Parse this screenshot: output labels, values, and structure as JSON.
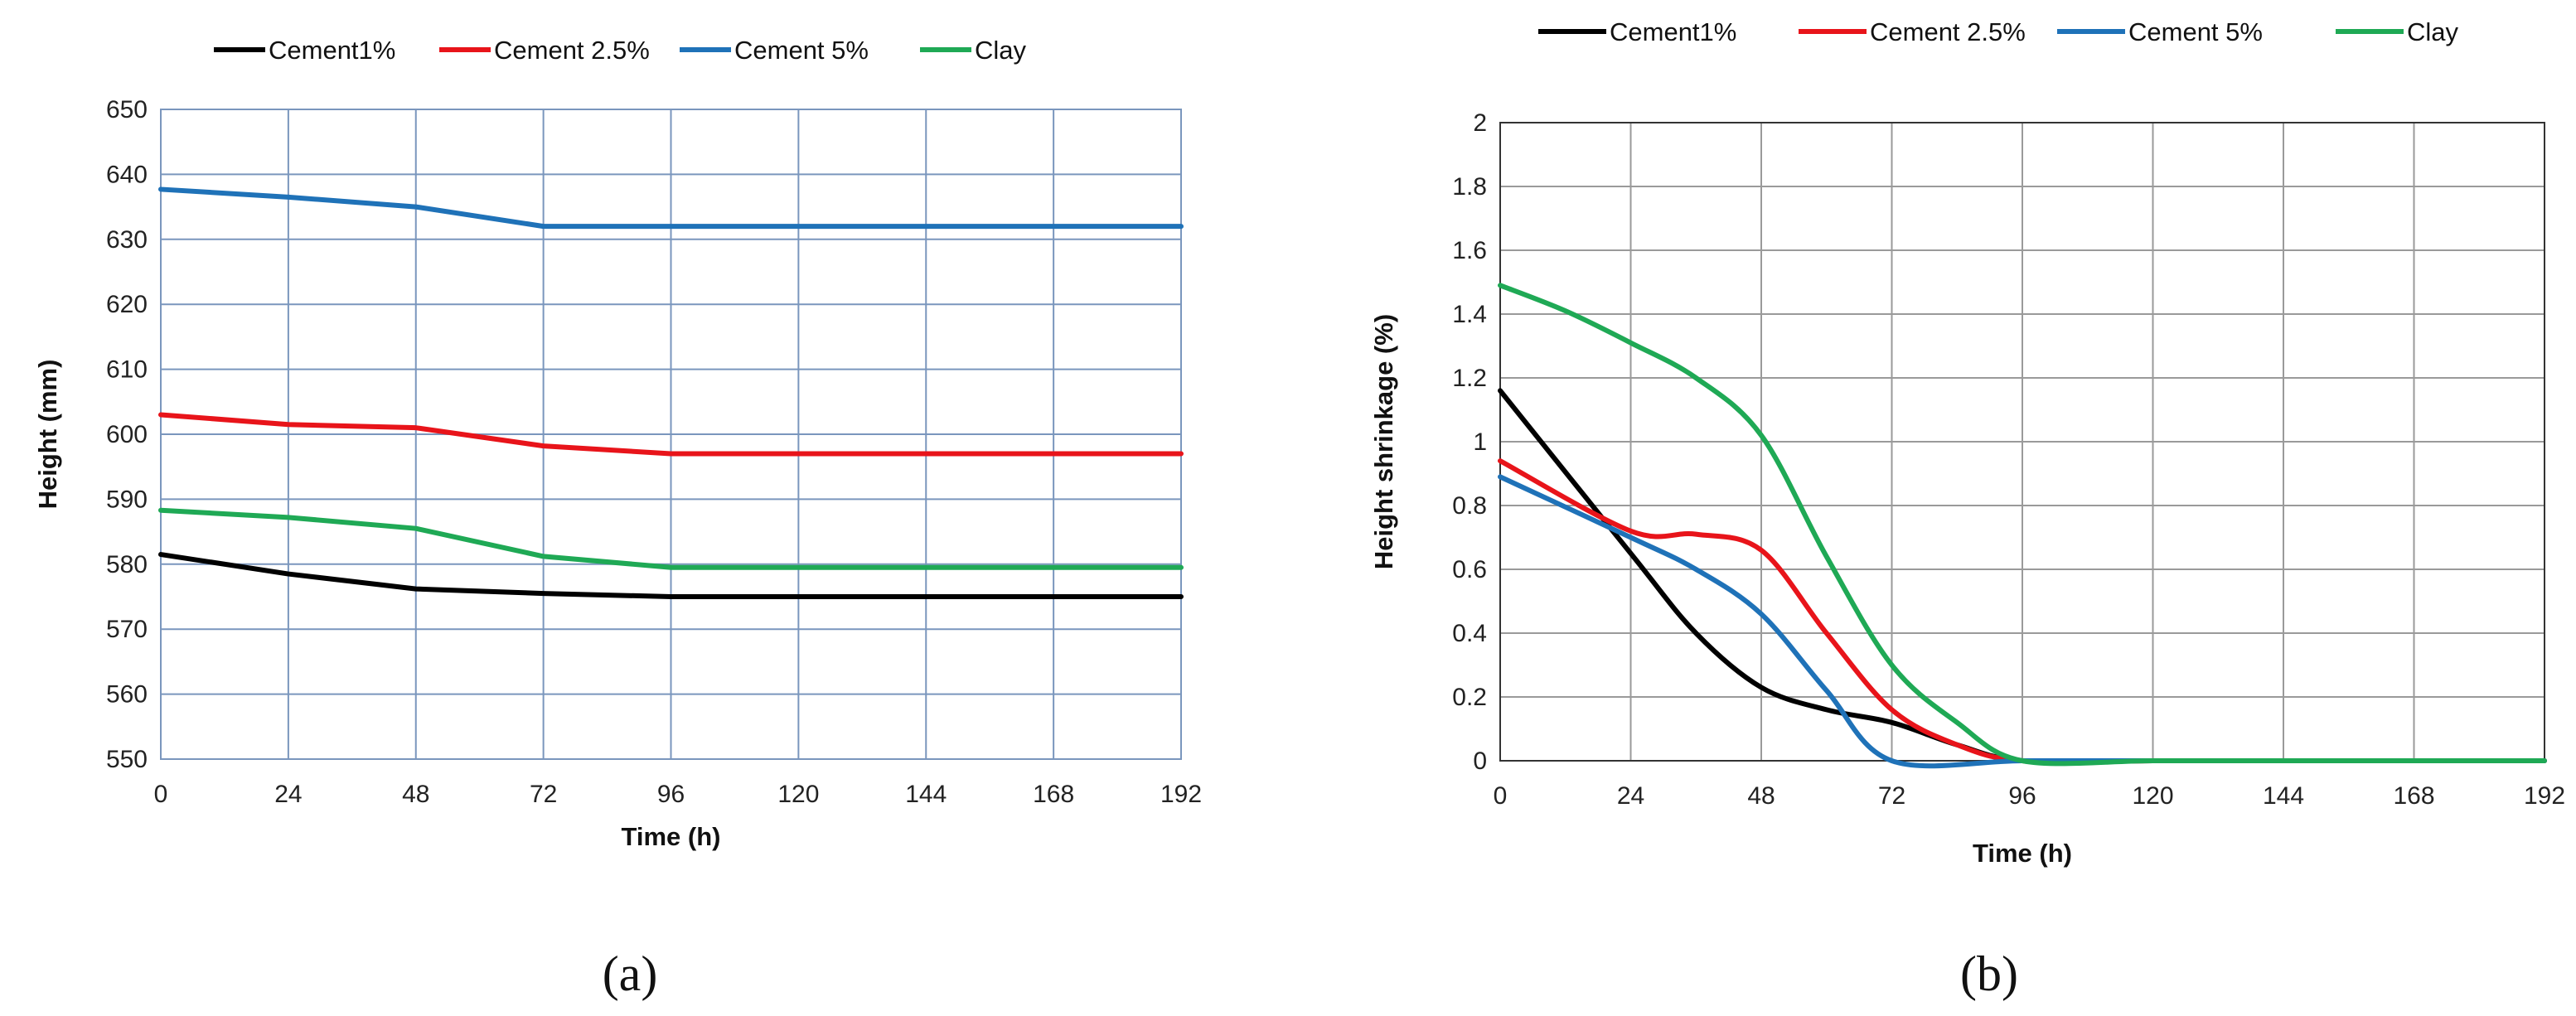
{
  "colors": {
    "cement1": "#000000",
    "cement2_5": "#e8141a",
    "cement5": "#1f72b8",
    "clay": "#1fa955"
  },
  "chart_data": [
    {
      "type": "line",
      "panel_label": "(a)",
      "title": "",
      "xlabel": "Time (h)",
      "ylabel": "Height (mm)",
      "xlim": [
        0,
        192
      ],
      "ylim": [
        550,
        650
      ],
      "x_ticks": [
        "0",
        "24",
        "48",
        "72",
        "96",
        "120",
        "144",
        "168",
        "192"
      ],
      "y_ticks": [
        "550",
        "560",
        "570",
        "580",
        "590",
        "600",
        "610",
        "620",
        "630",
        "640",
        "650"
      ],
      "grid": true,
      "legend_position": "top",
      "x": [
        0,
        24,
        48,
        72,
        96,
        120,
        144,
        168,
        192
      ],
      "series": [
        {
          "name": "Cement1%",
          "color_key": "cement1",
          "values": [
            581.5,
            578.5,
            576.2,
            575.5,
            575,
            575,
            575,
            575,
            575
          ]
        },
        {
          "name": "Cement 2.5%",
          "color_key": "cement2_5",
          "values": [
            603,
            601.5,
            601,
            598.2,
            597,
            597,
            597,
            597,
            597
          ]
        },
        {
          "name": "Cement 5%",
          "color_key": "cement5",
          "values": [
            637.7,
            636.5,
            635,
            632,
            632,
            632,
            632,
            632,
            632
          ]
        },
        {
          "name": "Clay",
          "color_key": "clay",
          "values": [
            588.3,
            587.2,
            585.5,
            581.2,
            579.5,
            579.5,
            579.5,
            579.5,
            579.5
          ]
        }
      ]
    },
    {
      "type": "line",
      "panel_label": "(b)",
      "title": "",
      "xlabel": "Time (h)",
      "ylabel": "Height shrinkage (%)",
      "xlim": [
        0,
        192
      ],
      "ylim": [
        0,
        2
      ],
      "x_ticks": [
        "0",
        "24",
        "48",
        "72",
        "96",
        "120",
        "144",
        "168",
        "192"
      ],
      "y_ticks": [
        "0",
        "0.2",
        "0.4",
        "0.6",
        "0.8",
        "1",
        "1.2",
        "1.4",
        "1.6",
        "1.8",
        "2"
      ],
      "grid": true,
      "legend_position": "top",
      "smooth": true,
      "series": [
        {
          "name": "Cement1%",
          "color_key": "cement1",
          "x": [
            0,
            24,
            36,
            48,
            60,
            72,
            84,
            96,
            120,
            144,
            168,
            192
          ],
          "values": [
            1.16,
            0.65,
            0.4,
            0.23,
            0.16,
            0.12,
            0.05,
            0,
            0,
            0,
            0,
            0
          ]
        },
        {
          "name": "Cement 2.5%",
          "color_key": "cement2_5",
          "x": [
            0,
            24,
            36,
            48,
            60,
            72,
            84,
            96,
            120,
            144,
            168,
            192
          ],
          "values": [
            0.94,
            0.72,
            0.71,
            0.66,
            0.4,
            0.16,
            0.05,
            0,
            0,
            0,
            0,
            0
          ]
        },
        {
          "name": "Cement 5%",
          "color_key": "cement5",
          "x": [
            0,
            24,
            36,
            48,
            60,
            72,
            96,
            120,
            144,
            168,
            192
          ],
          "values": [
            0.89,
            0.7,
            0.6,
            0.46,
            0.22,
            0,
            0,
            0,
            0,
            0,
            0
          ]
        },
        {
          "name": "Clay",
          "color_key": "clay",
          "x": [
            0,
            12,
            24,
            36,
            48,
            60,
            72,
            84,
            96,
            120,
            144,
            168,
            192
          ],
          "values": [
            1.49,
            1.41,
            1.31,
            1.2,
            1.02,
            0.64,
            0.3,
            0.12,
            0,
            0,
            0,
            0,
            0
          ]
        }
      ]
    }
  ]
}
